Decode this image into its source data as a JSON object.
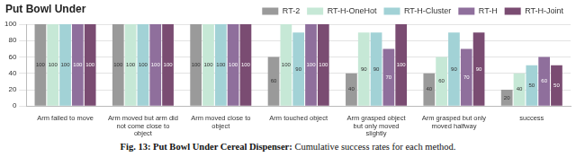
{
  "chart_data": {
    "type": "bar",
    "title": "Put Bowl Under",
    "caption": "Fig. 13: Put Bowl Under Cereal Dispenser: Cumulative success rates for each method.",
    "categories": [
      "Arm failed to move",
      "Arm moved but arm did not come close to object",
      "Arm moved close to object",
      "Arm touched object",
      "Arm grasped object but only moved slightly",
      "Arm grasped but only moved halfway",
      "success"
    ],
    "series": [
      {
        "name": "RT-2",
        "color": "#9a9a9a",
        "values": [
          100,
          100,
          100,
          60,
          40,
          40,
          20
        ]
      },
      {
        "name": "RT-H-OneHot",
        "color": "#c6e8d6",
        "values": [
          100,
          100,
          100,
          100,
          90,
          60,
          40
        ]
      },
      {
        "name": "RT-H-Cluster",
        "color": "#a2d2d6",
        "values": [
          100,
          100,
          100,
          90,
          90,
          90,
          50
        ]
      },
      {
        "name": "RT-H",
        "color": "#8f6f9c",
        "values": [
          100,
          100,
          100,
          100,
          70,
          70,
          60
        ]
      },
      {
        "name": "RT-H-Joint",
        "color": "#7a4c72",
        "values": [
          100,
          100,
          100,
          100,
          100,
          90,
          50
        ]
      }
    ],
    "ylim": [
      0,
      100
    ],
    "yticks": [
      0,
      20,
      40,
      60,
      80,
      100
    ],
    "grid": true,
    "legend": "top-right",
    "data_labels": true
  }
}
